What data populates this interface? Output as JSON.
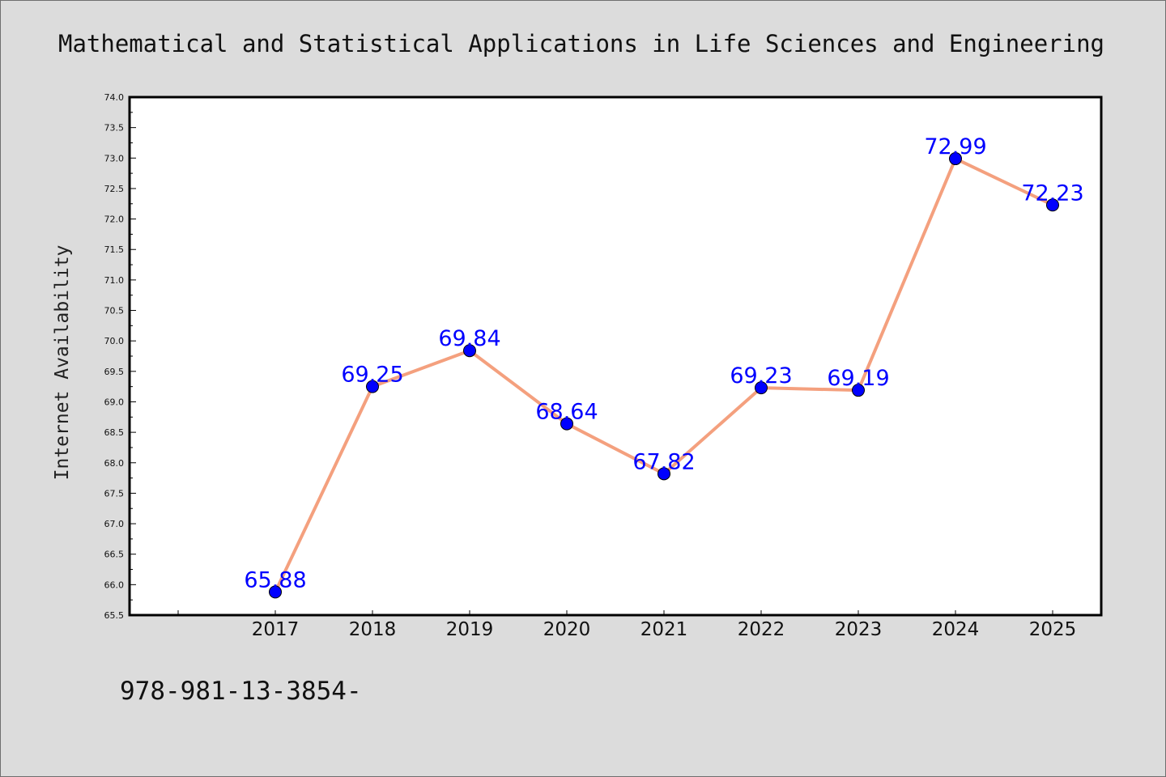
{
  "chart_data": {
    "type": "line",
    "title": "Mathematical and Statistical Applications in Life Sciences and Engineering",
    "ylabel": "Internet Availability",
    "xlabel": "",
    "ylim": [
      65.5,
      74.0
    ],
    "y_ticks": [
      "65.5",
      "66.0",
      "66.5",
      "67.0",
      "67.5",
      "68.0",
      "68.5",
      "69.0",
      "69.5",
      "70.0",
      "70.5",
      "71.0",
      "71.5",
      "72.0",
      "72.5",
      "73.0",
      "73.5",
      "74.0"
    ],
    "categories": [
      "2017",
      "2018",
      "2019",
      "2020",
      "2021",
      "2022",
      "2023",
      "2024",
      "2025"
    ],
    "series": [
      {
        "values": [
          65.88,
          69.25,
          69.84,
          68.64,
          67.82,
          69.23,
          69.19,
          72.99,
          72.23
        ]
      }
    ],
    "data_labels": [
      "65.88",
      "69.25",
      "69.84",
      "68.64",
      "67.82",
      "69.23",
      "69.19",
      "72.99",
      "72.23"
    ],
    "line_color": "#f4a07e",
    "marker_color": "#0000ff",
    "label_color": "#0000ff",
    "grid": false,
    "legend": "none"
  },
  "footer": {
    "text": "978-981-13-3854-"
  }
}
